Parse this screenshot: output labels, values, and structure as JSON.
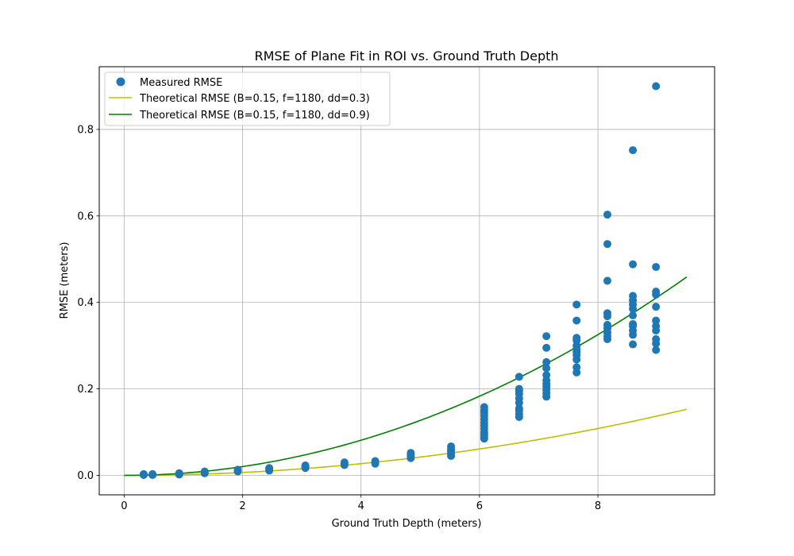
{
  "chart_data": {
    "type": "scatter",
    "title": "RMSE of Plane Fit in ROI vs. Ground Truth Depth",
    "xlabel": "Ground Truth Depth (meters)",
    "ylabel": "RMSE (meters)",
    "xlim": [
      -0.42,
      9.97
    ],
    "ylim": [
      -0.045,
      0.945
    ],
    "xticks": [
      0,
      2,
      4,
      6,
      8
    ],
    "yticks": [
      0.0,
      0.2,
      0.4,
      0.6,
      0.8
    ],
    "xtick_labels": [
      "0",
      "2",
      "4",
      "6",
      "8"
    ],
    "ytick_labels": [
      "0.0",
      "0.2",
      "0.4",
      "0.6",
      "0.8"
    ],
    "grid": true,
    "legend_position": "top-left",
    "legend": [
      {
        "label": "Measured RMSE",
        "kind": "marker",
        "color": "#1f77b4"
      },
      {
        "label": "Theoretical RMSE (B=0.15, f=1180, dd=0.3)",
        "kind": "line",
        "color": "#bfbf00"
      },
      {
        "label": "Theoretical RMSE (B=0.15, f=1180, dd=0.9)",
        "kind": "line",
        "color": "#008000"
      }
    ],
    "series": [
      {
        "name": "Measured RMSE",
        "kind": "scatter",
        "color": "#1f77b4",
        "points": [
          [
            0.33,
            0.001
          ],
          [
            0.33,
            0.002
          ],
          [
            0.33,
            0.003
          ],
          [
            0.48,
            0.001
          ],
          [
            0.48,
            0.002
          ],
          [
            0.48,
            0.003
          ],
          [
            0.93,
            0.002
          ],
          [
            0.93,
            0.003
          ],
          [
            0.93,
            0.005
          ],
          [
            1.36,
            0.005
          ],
          [
            1.36,
            0.007
          ],
          [
            1.36,
            0.009
          ],
          [
            1.92,
            0.009
          ],
          [
            1.92,
            0.011
          ],
          [
            1.92,
            0.013
          ],
          [
            2.45,
            0.011
          ],
          [
            2.45,
            0.014
          ],
          [
            2.45,
            0.017
          ],
          [
            3.06,
            0.017
          ],
          [
            3.06,
            0.02
          ],
          [
            3.06,
            0.023
          ],
          [
            3.72,
            0.024
          ],
          [
            3.72,
            0.027
          ],
          [
            3.72,
            0.03
          ],
          [
            4.24,
            0.027
          ],
          [
            4.24,
            0.03
          ],
          [
            4.24,
            0.033
          ],
          [
            4.84,
            0.04
          ],
          [
            4.84,
            0.044
          ],
          [
            4.84,
            0.048
          ],
          [
            4.84,
            0.052
          ],
          [
            5.52,
            0.045
          ],
          [
            5.52,
            0.05
          ],
          [
            5.52,
            0.056
          ],
          [
            5.52,
            0.06
          ],
          [
            5.52,
            0.067
          ],
          [
            6.08,
            0.085
          ],
          [
            6.08,
            0.09
          ],
          [
            6.08,
            0.095
          ],
          [
            6.08,
            0.1
          ],
          [
            6.08,
            0.108
          ],
          [
            6.08,
            0.115
          ],
          [
            6.08,
            0.122
          ],
          [
            6.08,
            0.13
          ],
          [
            6.08,
            0.138
          ],
          [
            6.08,
            0.145
          ],
          [
            6.08,
            0.15
          ],
          [
            6.08,
            0.158
          ],
          [
            6.67,
            0.135
          ],
          [
            6.67,
            0.142
          ],
          [
            6.67,
            0.15
          ],
          [
            6.67,
            0.155
          ],
          [
            6.67,
            0.168
          ],
          [
            6.67,
            0.178
          ],
          [
            6.67,
            0.188
          ],
          [
            6.67,
            0.195
          ],
          [
            6.67,
            0.2
          ],
          [
            6.67,
            0.228
          ],
          [
            7.13,
            0.182
          ],
          [
            7.13,
            0.19
          ],
          [
            7.13,
            0.198
          ],
          [
            7.13,
            0.205
          ],
          [
            7.13,
            0.212
          ],
          [
            7.13,
            0.22
          ],
          [
            7.13,
            0.232
          ],
          [
            7.13,
            0.248
          ],
          [
            7.13,
            0.262
          ],
          [
            7.13,
            0.295
          ],
          [
            7.13,
            0.322
          ],
          [
            7.64,
            0.238
          ],
          [
            7.64,
            0.25
          ],
          [
            7.64,
            0.268
          ],
          [
            7.64,
            0.278
          ],
          [
            7.64,
            0.285
          ],
          [
            7.64,
            0.292
          ],
          [
            7.64,
            0.3
          ],
          [
            7.64,
            0.312
          ],
          [
            7.64,
            0.318
          ],
          [
            7.64,
            0.358
          ],
          [
            7.64,
            0.395
          ],
          [
            8.16,
            0.315
          ],
          [
            8.16,
            0.322
          ],
          [
            8.16,
            0.33
          ],
          [
            8.16,
            0.34
          ],
          [
            8.16,
            0.348
          ],
          [
            8.16,
            0.368
          ],
          [
            8.16,
            0.375
          ],
          [
            8.16,
            0.45
          ],
          [
            8.16,
            0.535
          ],
          [
            8.16,
            0.603
          ],
          [
            8.59,
            0.303
          ],
          [
            8.59,
            0.325
          ],
          [
            8.59,
            0.335
          ],
          [
            8.59,
            0.345
          ],
          [
            8.59,
            0.35
          ],
          [
            8.59,
            0.37
          ],
          [
            8.59,
            0.385
          ],
          [
            8.59,
            0.395
          ],
          [
            8.59,
            0.405
          ],
          [
            8.59,
            0.415
          ],
          [
            8.59,
            0.488
          ],
          [
            8.59,
            0.752
          ],
          [
            8.98,
            0.29
          ],
          [
            8.98,
            0.305
          ],
          [
            8.98,
            0.315
          ],
          [
            8.98,
            0.335
          ],
          [
            8.98,
            0.345
          ],
          [
            8.98,
            0.358
          ],
          [
            8.98,
            0.39
          ],
          [
            8.98,
            0.418
          ],
          [
            8.98,
            0.425
          ],
          [
            8.98,
            0.482
          ],
          [
            8.98,
            0.9
          ]
        ]
      },
      {
        "name": "Theoretical RMSE (B=0.15, f=1180, dd=0.3)",
        "kind": "line",
        "color": "#bfbf00",
        "formula": "dd*z^2/(B*f)",
        "B": 0.15,
        "f": 1180,
        "dd": 0.3,
        "x_range": [
          0,
          9.5
        ]
      },
      {
        "name": "Theoretical RMSE (B=0.15, f=1180, dd=0.9)",
        "kind": "line",
        "color": "#008000",
        "formula": "dd*z^2/(B*f)",
        "B": 0.15,
        "f": 1180,
        "dd": 0.9,
        "x_range": [
          0,
          9.5
        ]
      }
    ]
  }
}
